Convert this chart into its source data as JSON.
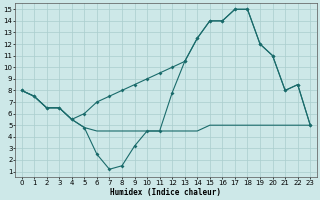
{
  "xlabel": "Humidex (Indice chaleur)",
  "xlim": [
    -0.5,
    23.5
  ],
  "ylim": [
    0.5,
    15.5
  ],
  "xticks": [
    0,
    1,
    2,
    3,
    4,
    5,
    6,
    7,
    8,
    9,
    10,
    11,
    12,
    13,
    14,
    15,
    16,
    17,
    18,
    19,
    20,
    21,
    22,
    23
  ],
  "yticks": [
    1,
    2,
    3,
    4,
    5,
    6,
    7,
    8,
    9,
    10,
    11,
    12,
    13,
    14,
    15
  ],
  "bg_color": "#cde8e8",
  "line_color": "#1a6b6b",
  "grid_color": "#aacece",
  "line1_x": [
    0,
    1,
    2,
    3,
    4,
    5,
    6,
    7,
    8,
    9,
    10,
    11,
    12,
    13,
    14,
    15,
    16,
    17,
    18,
    19,
    20,
    21,
    22,
    23
  ],
  "line1_y": [
    8,
    7.5,
    6.5,
    6.5,
    5.5,
    4.8,
    4.5,
    4.5,
    4.5,
    4.5,
    4.5,
    4.5,
    4.5,
    4.5,
    4.5,
    5,
    5,
    5,
    5,
    5,
    5,
    5,
    5,
    5
  ],
  "line2_x": [
    0,
    1,
    2,
    3,
    4,
    5,
    6,
    7,
    8,
    9,
    10,
    11,
    12,
    13,
    14,
    15,
    16,
    17,
    18,
    19,
    20,
    21,
    22,
    23
  ],
  "line2_y": [
    8,
    7.5,
    6.5,
    6.5,
    5.5,
    4.8,
    2.5,
    1.2,
    1.5,
    3.2,
    4.5,
    4.5,
    7.8,
    10.5,
    12.5,
    14,
    14,
    15,
    15,
    12,
    11,
    8,
    8.5,
    5
  ],
  "line3_x": [
    0,
    1,
    2,
    3,
    4,
    5,
    6,
    7,
    8,
    9,
    10,
    11,
    12,
    13,
    14,
    15,
    16,
    17,
    18,
    19,
    20,
    21,
    22,
    23
  ],
  "line3_y": [
    8,
    7.5,
    6.5,
    6.5,
    5.5,
    6,
    7,
    7.5,
    8,
    8.5,
    9,
    9.5,
    10,
    10.5,
    12.5,
    14,
    14,
    15,
    15,
    12,
    11,
    8,
    8.5,
    5
  ]
}
